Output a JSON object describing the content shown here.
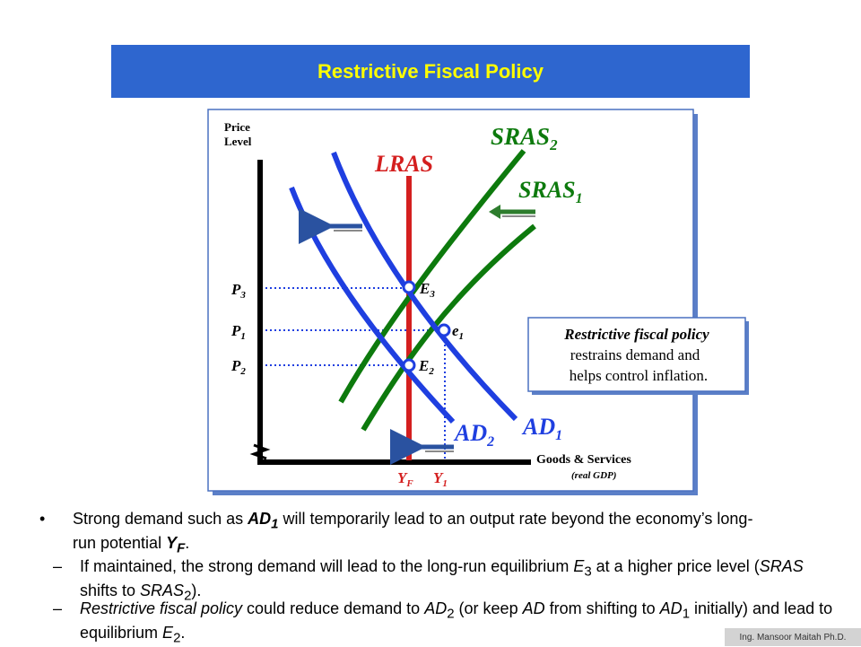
{
  "title": "Restrictive Fiscal Policy",
  "axis": {
    "y_label_line1": "Price",
    "y_label_line2": "Level",
    "x_label": "Goods & Services",
    "x_sublabel": "(real GDP)"
  },
  "curves": {
    "lras": "LRAS",
    "sras2_main": "SRAS",
    "sras2_sub": "2",
    "sras1_main": "SRAS",
    "sras1_sub": "1",
    "ad1_main": "AD",
    "ad1_sub": "1",
    "ad2_main": "AD",
    "ad2_sub": "2"
  },
  "points": {
    "e3_main": "E",
    "e3_sub": "3",
    "e1_main": "e",
    "e1_sub": "1",
    "e2_main": "E",
    "e2_sub": "2"
  },
  "prices": {
    "p3_main": "P",
    "p3_sub": "3",
    "p1_main": "P",
    "p1_sub": "1",
    "p2_main": "P",
    "p2_sub": "2"
  },
  "outputs": {
    "yf_main": "Y",
    "yf_sub": "F",
    "y1_main": "Y",
    "y1_sub": "1"
  },
  "callout": {
    "line1": "Restrictive fiscal policy",
    "line2": "restrains demand and",
    "line3": "helps control inflation."
  },
  "bullet_main": {
    "t1": "Strong demand such as ",
    "t2": "AD",
    "t3": "1",
    "t4": " will temporarily lead to an output rate beyond the economy’s long-run potential ",
    "t5": "Y",
    "t6": "F",
    "t7": "."
  },
  "sub1": {
    "t1": "If maintained, the strong demand will lead to the long-run equilibrium ",
    "t2": "E",
    "t3": "3",
    "t4": " at a higher price level (",
    "t5": "SRAS",
    "t6": " shifts to ",
    "t7": "SRAS",
    "t8": "2",
    "t9": ")."
  },
  "sub2": {
    "t1": "Restrictive fiscal policy",
    "t2": " could reduce demand to ",
    "t3": "AD",
    "t4": "2",
    "t5": " (or keep ",
    "t6": "AD",
    "t7": " from shifting to ",
    "t8": "AD",
    "t9": "1",
    "t10": " initially) and lead to equilibrium ",
    "t11": "E",
    "t12": "2",
    "t13": "."
  },
  "bullet_symbol": "•",
  "dash_symbol": "–",
  "credit": "Ing. Mansoor Maitah Ph.D.",
  "colors": {
    "title_bg": "#2e66cf",
    "title_text": "#ffff00",
    "ad_curves": "#1f3fe0",
    "sras_curves": "#0d7a0d",
    "lras": "#d41f1f",
    "arrow_blue": "#2a52a0",
    "arrow_green": "#2e7d2e"
  }
}
